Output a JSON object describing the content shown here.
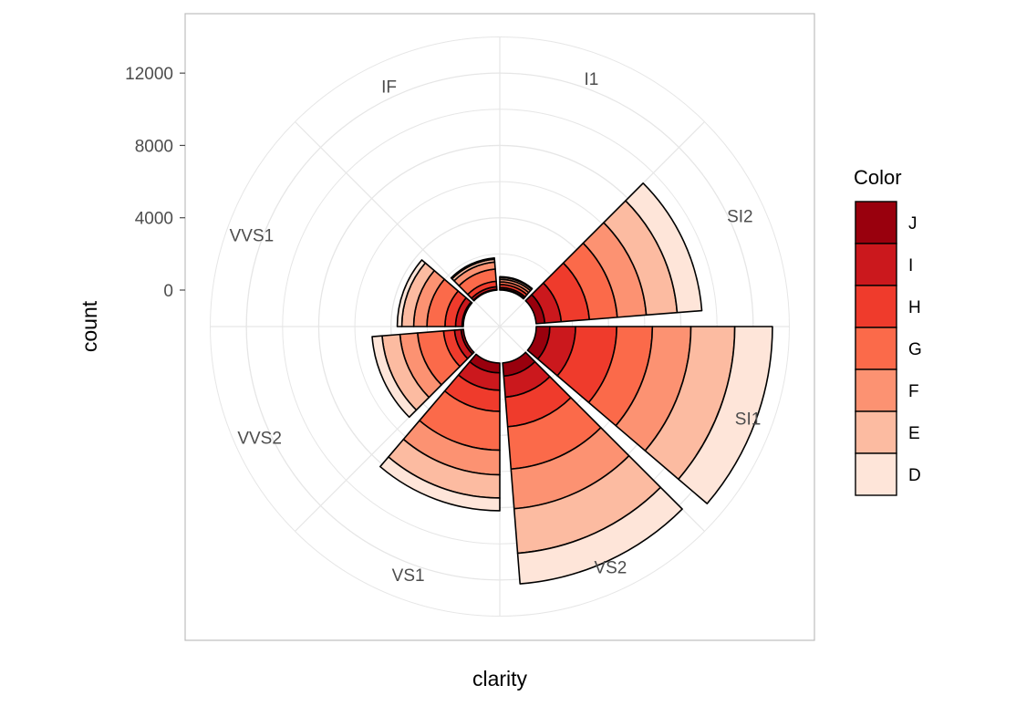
{
  "chart_data": {
    "type": "stacked-polar-bar",
    "xlabel": "clarity",
    "ylabel": "count",
    "legend_title": "Color",
    "legend_position": "right",
    "grid": true,
    "y_ticks": [
      0,
      4000,
      8000,
      12000
    ],
    "ylim": [
      -4000,
      14000
    ],
    "categories": [
      "I1",
      "SI2",
      "SI1",
      "VS2",
      "VS1",
      "VVS2",
      "VVS1",
      "IF"
    ],
    "series": [
      {
        "name": "D",
        "color": "#FEE5D9",
        "values": [
          42,
          1370,
          2083,
          1697,
          705,
          553,
          252,
          73
        ]
      },
      {
        "name": "E",
        "color": "#FCBBA1",
        "values": [
          102,
          1713,
          2426,
          2470,
          1281,
          991,
          656,
          158
        ]
      },
      {
        "name": "F",
        "color": "#FC9272",
        "values": [
          143,
          1609,
          2131,
          2201,
          1364,
          975,
          734,
          385
        ]
      },
      {
        "name": "G",
        "color": "#FB6A4A",
        "values": [
          150,
          1548,
          1976,
          2347,
          2148,
          1443,
          999,
          681
        ]
      },
      {
        "name": "H",
        "color": "#EF3B2C",
        "values": [
          162,
          1563,
          2275,
          1643,
          1169,
          608,
          585,
          299
        ]
      },
      {
        "name": "I",
        "color": "#CB181D",
        "values": [
          92,
          912,
          1424,
          1169,
          962,
          365,
          355,
          143
        ]
      },
      {
        "name": "J",
        "color": "#99000D",
        "values": [
          50,
          479,
          750,
          731,
          542,
          131,
          74,
          51
        ]
      }
    ],
    "legend": [
      {
        "label": "J",
        "color": "#99000D"
      },
      {
        "label": "I",
        "color": "#CB181D"
      },
      {
        "label": "H",
        "color": "#EF3B2C"
      },
      {
        "label": "G",
        "color": "#FB6A4A"
      },
      {
        "label": "F",
        "color": "#FC9272"
      },
      {
        "label": "E",
        "color": "#FCBBA1"
      },
      {
        "label": "D",
        "color": "#FEE5D9"
      }
    ]
  }
}
